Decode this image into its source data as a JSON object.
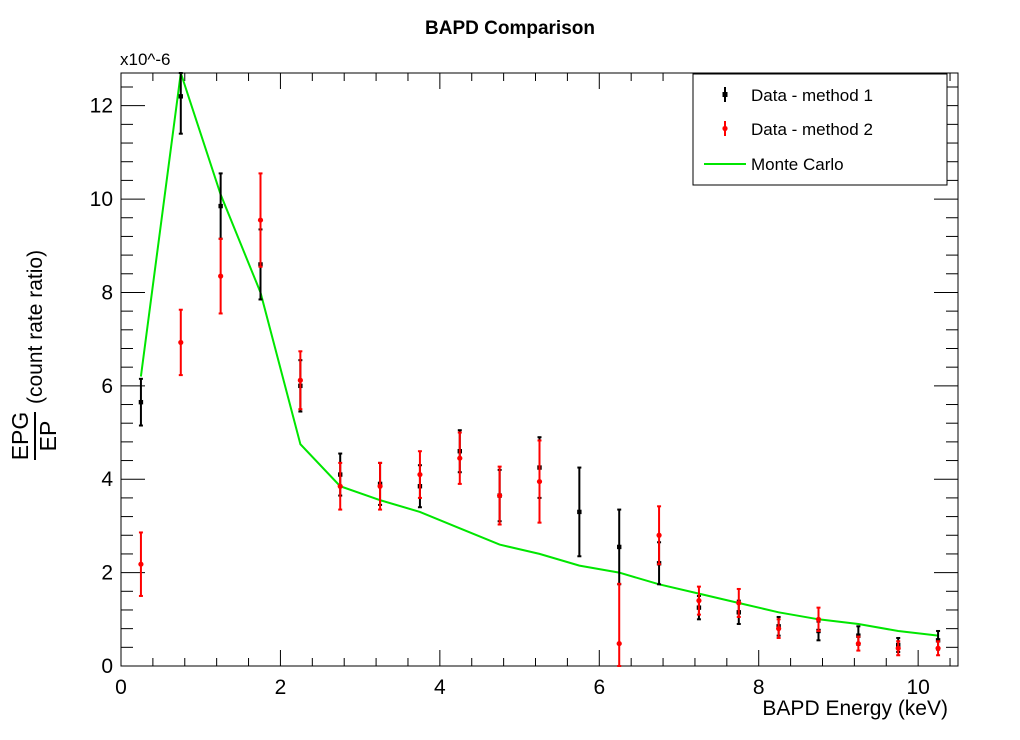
{
  "chart_data": {
    "type": "scatter",
    "title": "BAPD Comparison",
    "xlabel": "BAPD Energy (keV)",
    "ylabel_numerator": "EPG",
    "ylabel_denominator": "EP",
    "ylabel_suffix": "(count rate ratio)",
    "y_exponent_label": "x10^-6",
    "xlim": [
      0,
      10.5
    ],
    "ylim": [
      0,
      12.7
    ],
    "x_major_ticks": [
      0,
      2,
      4,
      6,
      8,
      10
    ],
    "y_major_ticks": [
      0,
      2,
      4,
      6,
      8,
      10,
      12
    ],
    "grid": false,
    "legend_position": "top-right",
    "series": [
      {
        "name": "Data - method 1",
        "color": "#000000",
        "marker": "square",
        "points": [
          {
            "x": 0.25,
            "y": 5.65,
            "err": 0.5
          },
          {
            "x": 0.75,
            "y": 12.2,
            "err": 0.8
          },
          {
            "x": 1.25,
            "y": 9.85,
            "err": 0.7
          },
          {
            "x": 1.75,
            "y": 8.6,
            "err": 0.75
          },
          {
            "x": 2.25,
            "y": 6.0,
            "err": 0.55
          },
          {
            "x": 2.75,
            "y": 4.1,
            "err": 0.45
          },
          {
            "x": 3.25,
            "y": 3.9,
            "err": 0.45
          },
          {
            "x": 3.75,
            "y": 3.85,
            "err": 0.45
          },
          {
            "x": 4.25,
            "y": 4.6,
            "err": 0.45
          },
          {
            "x": 4.75,
            "y": 3.65,
            "err": 0.55
          },
          {
            "x": 5.25,
            "y": 4.25,
            "err": 0.65
          },
          {
            "x": 5.75,
            "y": 3.3,
            "err": 0.95
          },
          {
            "x": 6.25,
            "y": 2.55,
            "err": 0.8
          },
          {
            "x": 6.75,
            "y": 2.2,
            "err": 0.45
          },
          {
            "x": 7.25,
            "y": 1.25,
            "err": 0.25
          },
          {
            "x": 7.75,
            "y": 1.15,
            "err": 0.25
          },
          {
            "x": 8.25,
            "y": 0.85,
            "err": 0.2
          },
          {
            "x": 8.75,
            "y": 0.75,
            "err": 0.2
          },
          {
            "x": 9.25,
            "y": 0.65,
            "err": 0.2
          },
          {
            "x": 9.75,
            "y": 0.45,
            "err": 0.15
          },
          {
            "x": 10.25,
            "y": 0.55,
            "err": 0.2
          }
        ]
      },
      {
        "name": "Data - method 2",
        "color": "#ff0000",
        "marker": "circle",
        "points": [
          {
            "x": 0.25,
            "y": 2.18,
            "err": 0.68
          },
          {
            "x": 0.75,
            "y": 6.93,
            "err": 0.7
          },
          {
            "x": 1.25,
            "y": 8.35,
            "err": 0.8
          },
          {
            "x": 1.75,
            "y": 9.55,
            "err": 1.0
          },
          {
            "x": 2.25,
            "y": 6.12,
            "err": 0.62
          },
          {
            "x": 2.75,
            "y": 3.85,
            "err": 0.5
          },
          {
            "x": 3.25,
            "y": 3.85,
            "err": 0.5
          },
          {
            "x": 3.75,
            "y": 4.1,
            "err": 0.5
          },
          {
            "x": 4.25,
            "y": 4.45,
            "err": 0.55
          },
          {
            "x": 4.75,
            "y": 3.65,
            "err": 0.62
          },
          {
            "x": 5.25,
            "y": 3.95,
            "err": 0.88
          },
          {
            "x": 6.25,
            "y": 0.48,
            "err": 1.28
          },
          {
            "x": 6.75,
            "y": 2.8,
            "err": 0.62
          },
          {
            "x": 7.25,
            "y": 1.4,
            "err": 0.3
          },
          {
            "x": 7.75,
            "y": 1.35,
            "err": 0.3
          },
          {
            "x": 8.25,
            "y": 0.8,
            "err": 0.2
          },
          {
            "x": 8.75,
            "y": 1.0,
            "err": 0.25
          },
          {
            "x": 9.25,
            "y": 0.48,
            "err": 0.15
          },
          {
            "x": 9.75,
            "y": 0.38,
            "err": 0.15
          },
          {
            "x": 10.25,
            "y": 0.38,
            "err": 0.15
          }
        ]
      },
      {
        "name": "Monte Carlo",
        "color": "#00e600",
        "marker": "line",
        "points": [
          {
            "x": 0.25,
            "y": 6.2
          },
          {
            "x": 0.75,
            "y": 12.7
          },
          {
            "x": 1.25,
            "y": 10.1
          },
          {
            "x": 1.75,
            "y": 8.0
          },
          {
            "x": 2.25,
            "y": 4.75
          },
          {
            "x": 2.75,
            "y": 3.85
          },
          {
            "x": 3.25,
            "y": 3.55
          },
          {
            "x": 3.75,
            "y": 3.3
          },
          {
            "x": 4.25,
            "y": 2.95
          },
          {
            "x": 4.75,
            "y": 2.6
          },
          {
            "x": 5.25,
            "y": 2.4
          },
          {
            "x": 5.75,
            "y": 2.15
          },
          {
            "x": 6.25,
            "y": 2.0
          },
          {
            "x": 6.75,
            "y": 1.75
          },
          {
            "x": 7.25,
            "y": 1.55
          },
          {
            "x": 7.75,
            "y": 1.35
          },
          {
            "x": 8.25,
            "y": 1.15
          },
          {
            "x": 8.75,
            "y": 1.0
          },
          {
            "x": 9.25,
            "y": 0.9
          },
          {
            "x": 9.75,
            "y": 0.75
          },
          {
            "x": 10.25,
            "y": 0.65
          }
        ]
      }
    ]
  }
}
